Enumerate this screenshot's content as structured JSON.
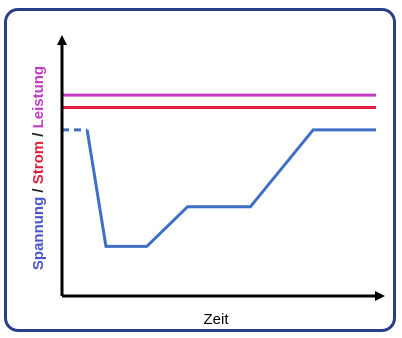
{
  "chart_data": {
    "type": "line",
    "xlabel": "Zeit",
    "ylabel_parts": [
      {
        "text": "Spannung",
        "color": "#4a56c8"
      },
      {
        "text": " / ",
        "color": "#222222"
      },
      {
        "text": "Strom",
        "color": "#e02040"
      },
      {
        "text": " / ",
        "color": "#222222"
      },
      {
        "text": "Leistung",
        "color": "#c03cc0"
      }
    ],
    "xlim": [
      0,
      100
    ],
    "ylim": [
      0,
      100
    ],
    "grid": false,
    "series": [
      {
        "color": "#c03cc0",
        "x": [
          0,
          100
        ],
        "y": [
          81,
          81
        ]
      },
      {
        "color": "#e02040",
        "x": [
          0,
          100
        ],
        "y": [
          76,
          76
        ]
      },
      {
        "color": "#3f6fc4",
        "x": [
          0,
          8,
          14,
          27,
          40,
          60,
          80,
          100
        ],
        "y": [
          67,
          67,
          20,
          20,
          36,
          36,
          67,
          67
        ],
        "dashed_until_x": 8
      }
    ]
  }
}
